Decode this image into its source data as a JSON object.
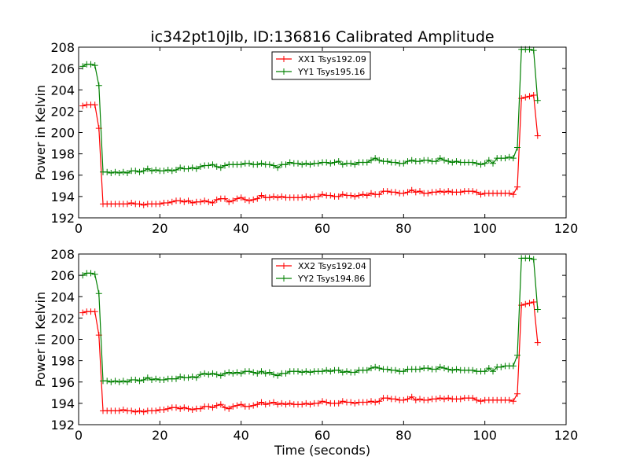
{
  "figure": {
    "title": "ic342pt10jlb, ID:136816 Calibrated Amplitude"
  },
  "colors": {
    "xx": "#ff0000",
    "yy": "#008000"
  },
  "chart_data": [
    {
      "type": "line",
      "title": "ic342pt10jlb, ID:136816 Calibrated Amplitude",
      "xlabel": "",
      "ylabel": "Power in Kelvin",
      "xlim": [
        0,
        120
      ],
      "ylim": [
        192,
        208
      ],
      "xticks": [
        0,
        20,
        40,
        60,
        80,
        100,
        120
      ],
      "yticks": [
        192,
        194,
        196,
        198,
        200,
        202,
        204,
        206,
        208
      ],
      "grid": false,
      "legend": "top-center",
      "marker": "+",
      "series": [
        {
          "name": "XX1 Tsys192.09",
          "color": "#ff0000",
          "x": [
            1,
            2,
            3,
            4,
            5,
            6,
            7,
            8,
            9,
            10,
            11,
            12,
            13,
            14,
            15,
            16,
            17,
            18,
            19,
            20,
            21,
            22,
            23,
            24,
            25,
            26,
            27,
            28,
            29,
            30,
            31,
            32,
            33,
            34,
            35,
            36,
            37,
            38,
            39,
            40,
            41,
            42,
            43,
            44,
            45,
            46,
            47,
            48,
            49,
            50,
            51,
            52,
            53,
            54,
            55,
            56,
            57,
            58,
            59,
            60,
            61,
            62,
            63,
            64,
            65,
            66,
            67,
            68,
            69,
            70,
            71,
            72,
            73,
            74,
            75,
            76,
            77,
            78,
            79,
            80,
            81,
            82,
            83,
            84,
            85,
            86,
            87,
            88,
            89,
            90,
            91,
            92,
            93,
            94,
            95,
            96,
            97,
            98,
            99,
            100,
            101,
            102,
            103,
            104,
            105,
            106,
            107,
            108,
            109,
            110,
            111,
            112,
            113
          ],
          "y": [
            202.5,
            202.6,
            202.6,
            202.6,
            200.4,
            193.3,
            193.3,
            193.3,
            193.3,
            193.3,
            193.3,
            193.3,
            193.4,
            193.3,
            193.3,
            193.2,
            193.3,
            193.3,
            193.3,
            193.3,
            193.4,
            193.4,
            193.5,
            193.6,
            193.6,
            193.5,
            193.6,
            193.4,
            193.5,
            193.5,
            193.6,
            193.5,
            193.4,
            193.7,
            193.8,
            193.8,
            193.5,
            193.6,
            193.8,
            193.9,
            193.7,
            193.6,
            193.7,
            193.8,
            194.1,
            193.9,
            193.9,
            194.0,
            193.9,
            194.0,
            193.9,
            193.9,
            193.9,
            193.9,
            193.9,
            194.0,
            193.9,
            194.0,
            194.0,
            194.2,
            194.1,
            194.1,
            194.0,
            194.0,
            194.2,
            194.1,
            194.1,
            194.0,
            194.1,
            194.2,
            194.1,
            194.3,
            194.2,
            194.2,
            194.5,
            194.5,
            194.4,
            194.4,
            194.3,
            194.3,
            194.4,
            194.6,
            194.4,
            194.5,
            194.3,
            194.3,
            194.4,
            194.4,
            194.5,
            194.4,
            194.5,
            194.4,
            194.4,
            194.4,
            194.5,
            194.5,
            194.5,
            194.4,
            194.2,
            194.3,
            194.3,
            194.3,
            194.3,
            194.3,
            194.3,
            194.3,
            194.2,
            194.9,
            203.2,
            203.3,
            203.4,
            203.5,
            199.7
          ]
        },
        {
          "name": "YY1 Tsys195.16",
          "color": "#008000",
          "x": [
            1,
            2,
            3,
            4,
            5,
            6,
            7,
            8,
            9,
            10,
            11,
            12,
            13,
            14,
            15,
            16,
            17,
            18,
            19,
            20,
            21,
            22,
            23,
            24,
            25,
            26,
            27,
            28,
            29,
            30,
            31,
            32,
            33,
            34,
            35,
            36,
            37,
            38,
            39,
            40,
            41,
            42,
            43,
            44,
            45,
            46,
            47,
            48,
            49,
            50,
            51,
            52,
            53,
            54,
            55,
            56,
            57,
            58,
            59,
            60,
            61,
            62,
            63,
            64,
            65,
            66,
            67,
            68,
            69,
            70,
            71,
            72,
            73,
            74,
            75,
            76,
            77,
            78,
            79,
            80,
            81,
            82,
            83,
            84,
            85,
            86,
            87,
            88,
            89,
            90,
            91,
            92,
            93,
            94,
            95,
            96,
            97,
            98,
            99,
            100,
            101,
            102,
            103,
            104,
            105,
            106,
            107,
            108,
            109,
            110,
            111,
            112,
            113
          ],
          "y": [
            206.2,
            206.4,
            206.4,
            206.3,
            204.4,
            196.3,
            196.3,
            196.2,
            196.3,
            196.2,
            196.3,
            196.2,
            196.4,
            196.4,
            196.3,
            196.4,
            196.6,
            196.4,
            196.5,
            196.4,
            196.4,
            196.5,
            196.4,
            196.5,
            196.7,
            196.6,
            196.6,
            196.7,
            196.6,
            196.8,
            196.9,
            196.9,
            197.0,
            196.8,
            196.7,
            196.9,
            197.0,
            197.0,
            197.0,
            197.0,
            197.1,
            197.1,
            197.0,
            197.0,
            197.1,
            197.0,
            197.0,
            196.9,
            196.7,
            197.0,
            197.0,
            197.2,
            197.1,
            197.1,
            197.0,
            197.1,
            197.0,
            197.1,
            197.1,
            197.2,
            197.2,
            197.1,
            197.2,
            197.3,
            197.0,
            197.1,
            197.1,
            197.0,
            197.2,
            197.2,
            197.2,
            197.4,
            197.6,
            197.4,
            197.3,
            197.3,
            197.2,
            197.2,
            197.1,
            197.1,
            197.3,
            197.4,
            197.3,
            197.3,
            197.4,
            197.4,
            197.3,
            197.3,
            197.6,
            197.4,
            197.3,
            197.2,
            197.3,
            197.2,
            197.2,
            197.2,
            197.2,
            197.1,
            197.0,
            197.1,
            197.4,
            197.1,
            197.6,
            197.6,
            197.6,
            197.7,
            197.6,
            198.6,
            207.8,
            207.8,
            207.8,
            207.7,
            203.0
          ]
        }
      ]
    },
    {
      "type": "line",
      "title": "",
      "xlabel": "Time (seconds)",
      "ylabel": "Power in Kelvin",
      "xlim": [
        0,
        120
      ],
      "ylim": [
        192,
        208
      ],
      "xticks": [
        0,
        20,
        40,
        60,
        80,
        100,
        120
      ],
      "yticks": [
        192,
        194,
        196,
        198,
        200,
        202,
        204,
        206,
        208
      ],
      "grid": false,
      "legend": "top-center",
      "marker": "+",
      "series": [
        {
          "name": "XX2 Tsys192.04",
          "color": "#ff0000",
          "x": [
            1,
            2,
            3,
            4,
            5,
            6,
            7,
            8,
            9,
            10,
            11,
            12,
            13,
            14,
            15,
            16,
            17,
            18,
            19,
            20,
            21,
            22,
            23,
            24,
            25,
            26,
            27,
            28,
            29,
            30,
            31,
            32,
            33,
            34,
            35,
            36,
            37,
            38,
            39,
            40,
            41,
            42,
            43,
            44,
            45,
            46,
            47,
            48,
            49,
            50,
            51,
            52,
            53,
            54,
            55,
            56,
            57,
            58,
            59,
            60,
            61,
            62,
            63,
            64,
            65,
            66,
            67,
            68,
            69,
            70,
            71,
            72,
            73,
            74,
            75,
            76,
            77,
            78,
            79,
            80,
            81,
            82,
            83,
            84,
            85,
            86,
            87,
            88,
            89,
            90,
            91,
            92,
            93,
            94,
            95,
            96,
            97,
            98,
            99,
            100,
            101,
            102,
            103,
            104,
            105,
            106,
            107,
            108,
            109,
            110,
            111,
            112,
            113
          ],
          "y": [
            202.5,
            202.6,
            202.6,
            202.6,
            200.4,
            193.3,
            193.3,
            193.3,
            193.3,
            193.3,
            193.4,
            193.3,
            193.3,
            193.2,
            193.3,
            193.2,
            193.3,
            193.3,
            193.3,
            193.4,
            193.4,
            193.5,
            193.6,
            193.6,
            193.5,
            193.6,
            193.5,
            193.4,
            193.5,
            193.5,
            193.7,
            193.7,
            193.6,
            193.8,
            193.9,
            193.6,
            193.5,
            193.7,
            193.8,
            193.9,
            193.7,
            193.7,
            193.8,
            193.9,
            194.1,
            193.9,
            194.0,
            194.1,
            193.9,
            194.0,
            193.9,
            194.0,
            193.9,
            193.9,
            193.9,
            194.0,
            193.9,
            194.0,
            194.0,
            194.2,
            194.1,
            194.0,
            194.0,
            194.0,
            194.2,
            194.1,
            194.1,
            194.0,
            194.1,
            194.1,
            194.1,
            194.2,
            194.1,
            194.2,
            194.5,
            194.5,
            194.4,
            194.4,
            194.3,
            194.3,
            194.4,
            194.6,
            194.3,
            194.4,
            194.3,
            194.3,
            194.4,
            194.4,
            194.5,
            194.4,
            194.5,
            194.4,
            194.4,
            194.4,
            194.5,
            194.5,
            194.5,
            194.3,
            194.2,
            194.3,
            194.3,
            194.3,
            194.3,
            194.3,
            194.3,
            194.3,
            194.2,
            194.9,
            203.2,
            203.3,
            203.4,
            203.5,
            199.7
          ]
        },
        {
          "name": "YY2 Tsys194.86",
          "color": "#008000",
          "x": [
            1,
            2,
            3,
            4,
            5,
            6,
            7,
            8,
            9,
            10,
            11,
            12,
            13,
            14,
            15,
            16,
            17,
            18,
            19,
            20,
            21,
            22,
            23,
            24,
            25,
            26,
            27,
            28,
            29,
            30,
            31,
            32,
            33,
            34,
            35,
            36,
            37,
            38,
            39,
            40,
            41,
            42,
            43,
            44,
            45,
            46,
            47,
            48,
            49,
            50,
            51,
            52,
            53,
            54,
            55,
            56,
            57,
            58,
            59,
            60,
            61,
            62,
            63,
            64,
            65,
            66,
            67,
            68,
            69,
            70,
            71,
            72,
            73,
            74,
            75,
            76,
            77,
            78,
            79,
            80,
            81,
            82,
            83,
            84,
            85,
            86,
            87,
            88,
            89,
            90,
            91,
            92,
            93,
            94,
            95,
            96,
            97,
            98,
            99,
            100,
            101,
            102,
            103,
            104,
            105,
            106,
            107,
            108,
            109,
            110,
            111,
            112,
            113
          ],
          "y": [
            206.0,
            206.2,
            206.2,
            206.1,
            204.3,
            196.1,
            196.1,
            196.0,
            196.1,
            196.0,
            196.1,
            196.0,
            196.2,
            196.2,
            196.1,
            196.2,
            196.4,
            196.2,
            196.3,
            196.2,
            196.2,
            196.3,
            196.3,
            196.3,
            196.5,
            196.4,
            196.4,
            196.5,
            196.4,
            196.7,
            196.8,
            196.7,
            196.8,
            196.7,
            196.6,
            196.8,
            196.9,
            196.8,
            196.9,
            196.8,
            197.0,
            197.0,
            196.9,
            196.8,
            197.0,
            196.8,
            196.9,
            196.7,
            196.6,
            196.8,
            196.8,
            197.0,
            197.0,
            197.0,
            196.9,
            197.0,
            196.9,
            197.0,
            197.0,
            197.0,
            197.1,
            197.0,
            197.1,
            197.1,
            196.9,
            197.0,
            196.9,
            196.9,
            197.1,
            197.1,
            197.1,
            197.3,
            197.4,
            197.3,
            197.2,
            197.2,
            197.1,
            197.1,
            197.0,
            197.0,
            197.2,
            197.2,
            197.2,
            197.2,
            197.3,
            197.3,
            197.2,
            197.2,
            197.4,
            197.3,
            197.2,
            197.1,
            197.2,
            197.1,
            197.1,
            197.1,
            197.1,
            197.0,
            197.0,
            197.0,
            197.3,
            197.0,
            197.4,
            197.4,
            197.5,
            197.5,
            197.5,
            198.5,
            207.6,
            207.6,
            207.6,
            207.5,
            202.8
          ]
        }
      ]
    }
  ]
}
